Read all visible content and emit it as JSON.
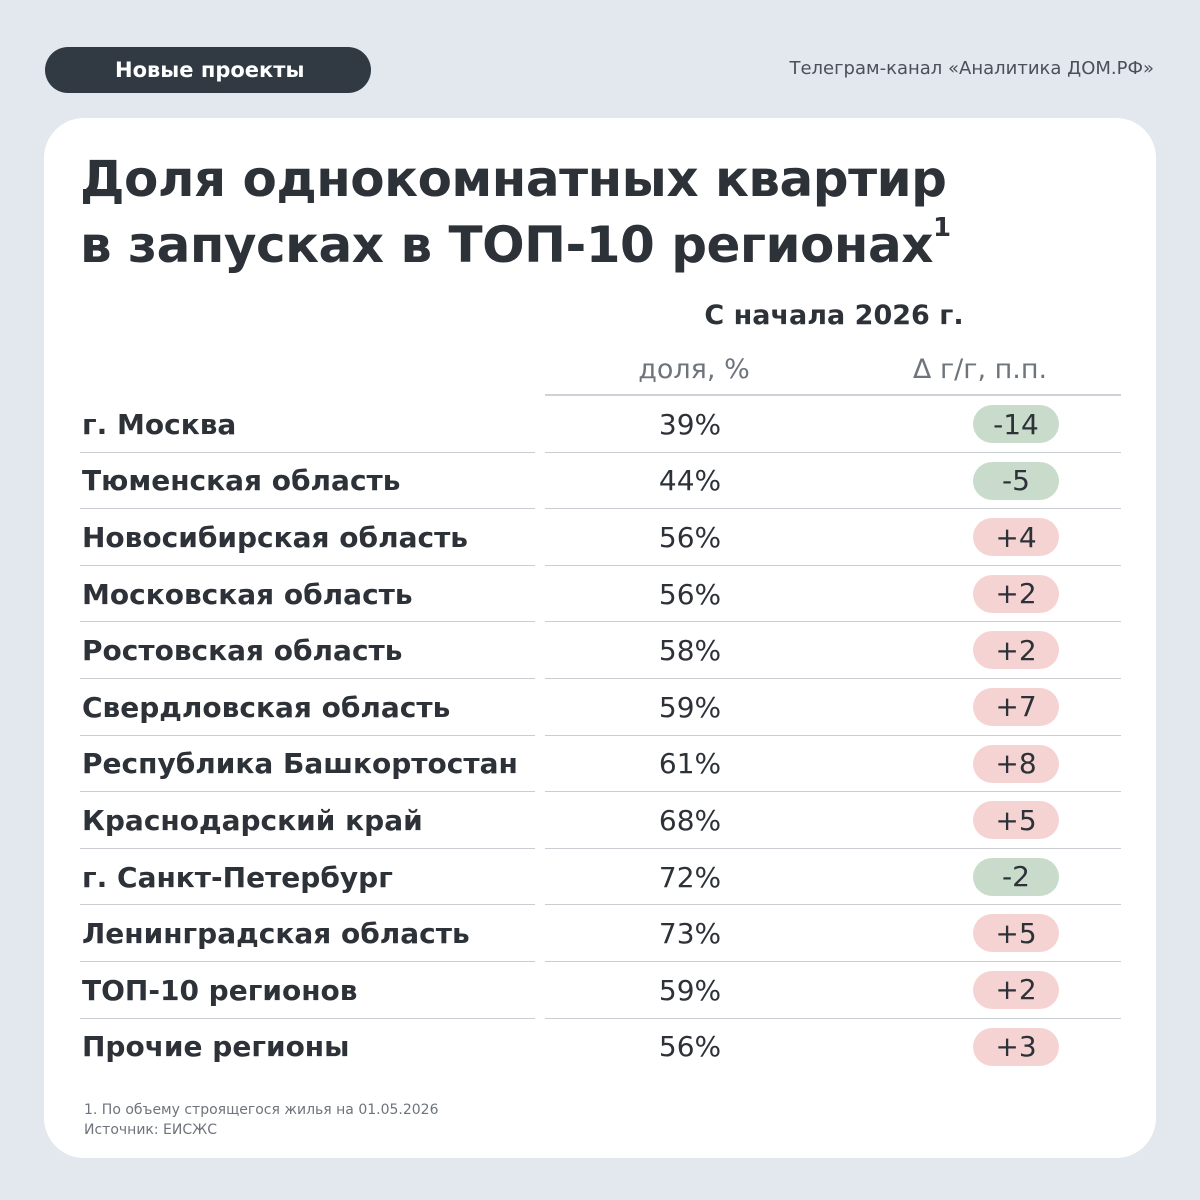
{
  "header": {
    "tag": "Новые проекты",
    "channel": "Телеграм-канал «Аналитика ДОМ.РФ»"
  },
  "title_line1": "Доля однокомнатных квартир",
  "title_line2": "в запусках в ТОП-10 регионах",
  "title_footnote_mark": "1",
  "period": "С начала 2026 г.",
  "columns": {
    "share": "доля, %",
    "delta": "Δ г/г, п.п."
  },
  "colors": {
    "negative_badge": "#c9dccb",
    "positive_badge": "#f6d3d3",
    "header_pill": "#313a43"
  },
  "chart_data": {
    "type": "table",
    "columns": [
      "доля, %",
      "Δ г/г, п.п."
    ],
    "rows": [
      {
        "region": "г. Москва",
        "share": "39%",
        "delta": "-14"
      },
      {
        "region": "Тюменская область",
        "share": "44%",
        "delta": "-5"
      },
      {
        "region": "Новосибирская область",
        "share": "56%",
        "delta": "+4"
      },
      {
        "region": "Московская область",
        "share": "56%",
        "delta": "+2"
      },
      {
        "region": "Ростовская область",
        "share": "58%",
        "delta": "+2"
      },
      {
        "region": "Свердловская область",
        "share": "59%",
        "delta": "+7"
      },
      {
        "region": "Республика Башкортостан",
        "share": "61%",
        "delta": "+8"
      },
      {
        "region": "Краснодарский край",
        "share": "68%",
        "delta": "+5"
      },
      {
        "region": "г. Санкт-Петербург",
        "share": "72%",
        "delta": "-2"
      },
      {
        "region": "Ленинградская область",
        "share": "73%",
        "delta": "+5"
      },
      {
        "region": "ТОП-10 регионов",
        "share": "59%",
        "delta": "+2"
      },
      {
        "region": "Прочие регионы",
        "share": "56%",
        "delta": "+3"
      }
    ]
  },
  "footnote": "1. По объему строящегося жилья на 01.05.2026",
  "source": "Источник: ЕИСЖС"
}
